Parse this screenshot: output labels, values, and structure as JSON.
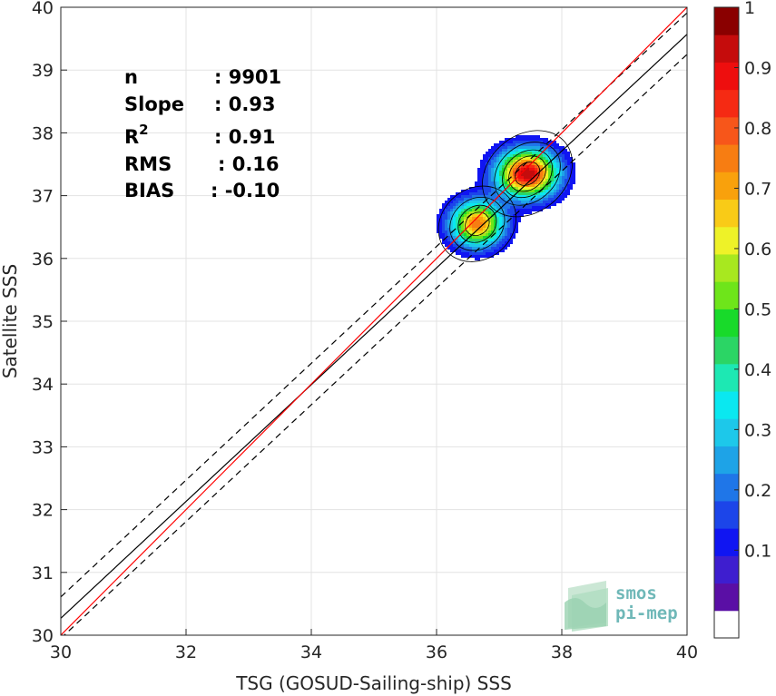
{
  "chart_data": {
    "type": "scatter",
    "subtype": "density-contour",
    "xlabel": "TSG (GOSUD-Sailing-ship) SSS",
    "ylabel": "Satellite SSS",
    "xlim": [
      30,
      40
    ],
    "ylim": [
      30,
      40
    ],
    "x_ticks": [
      "30",
      "32",
      "34",
      "36",
      "38",
      "40"
    ],
    "y_ticks": [
      "30",
      "31",
      "32",
      "33",
      "34",
      "35",
      "36",
      "37",
      "38",
      "39",
      "40"
    ],
    "grid": true,
    "stats": [
      {
        "label": "n",
        "value": ": 9901"
      },
      {
        "label": "Slope",
        "value": ": 0.93"
      },
      {
        "label": "R",
        "sup": "2",
        "value": ": 0.91"
      },
      {
        "label": "RMS",
        "value": ": 0.16"
      },
      {
        "label": "BIAS",
        "value": ": -0.10"
      }
    ],
    "lines": {
      "identity": {
        "slope": 1.0,
        "intercept": 0.0,
        "color": "#ff0000"
      },
      "fit": {
        "slope": 0.93,
        "intercept": 2.37,
        "color": "#000000",
        "style": "solid"
      },
      "fit_upper": {
        "slope": 0.93,
        "intercept": 2.71,
        "color": "#000000",
        "style": "dashed"
      },
      "fit_lower": {
        "slope": 0.93,
        "intercept": 2.05,
        "color": "#000000",
        "style": "dashed"
      }
    },
    "density_peaks": [
      {
        "x": 36.65,
        "y": 36.55,
        "sx": 0.28,
        "sy": 0.24,
        "amp": 0.78
      },
      {
        "x": 37.45,
        "y": 37.35,
        "sx": 0.32,
        "sy": 0.25,
        "amp": 1.0
      }
    ],
    "contour_levels": [
      0.05,
      0.1,
      0.15,
      0.2,
      0.25,
      0.3,
      0.35,
      0.4,
      0.45,
      0.5,
      0.55,
      0.6,
      0.65,
      0.7,
      0.75,
      0.8,
      0.85,
      0.9,
      0.95
    ],
    "colorbar": {
      "ticks": [
        "0.1",
        "0.2",
        "0.3",
        "0.4",
        "0.5",
        "0.6",
        "0.7",
        "0.8",
        "0.9",
        "1"
      ],
      "colors": [
        "#ffffff",
        "#5a0fa5",
        "#3e1ecf",
        "#1015f2",
        "#1c45e9",
        "#1f76e8",
        "#1ea3e7",
        "#1dc8ea",
        "#0ae8f0",
        "#1de8b3",
        "#2bd565",
        "#18da2a",
        "#6ee51a",
        "#a8e81f",
        "#eef228",
        "#f9cb17",
        "#f9a10c",
        "#f77d12",
        "#f7561a",
        "#f52a13",
        "#ee0e0e",
        "#c50c0c",
        "#8a0000"
      ]
    },
    "logo": {
      "line1": "smos",
      "line2": "pi-mep"
    }
  }
}
